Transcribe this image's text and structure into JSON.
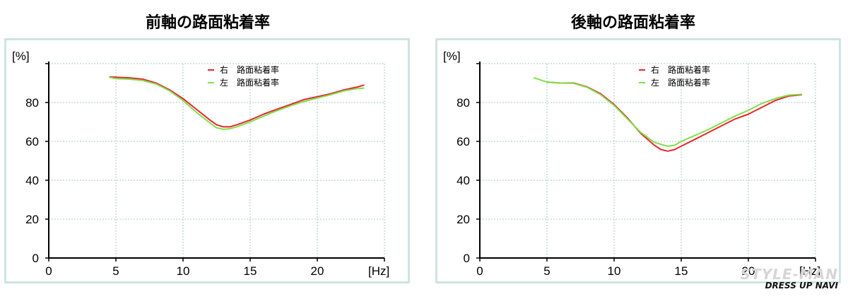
{
  "chart_data": [
    {
      "type": "line",
      "title": "前軸の路面粘着率",
      "ylabel": "[%]",
      "xlabel": "[Hz]",
      "xlim": [
        0,
        25
      ],
      "ylim": [
        0,
        100
      ],
      "x_ticks": [
        "0",
        "5",
        "10",
        "15",
        "20"
      ],
      "y_ticks": [
        "0",
        "20",
        "40",
        "60",
        "80"
      ],
      "grid": true,
      "legend_position": "top-center",
      "series": [
        {
          "name": "右　路面粘着率",
          "color": "#e8262d",
          "points": [
            [
              4.5,
              93.2
            ],
            [
              5,
              93
            ],
            [
              6,
              92.7
            ],
            [
              7,
              92
            ],
            [
              8,
              90
            ],
            [
              9,
              86.5
            ],
            [
              10,
              82
            ],
            [
              11,
              76.5
            ],
            [
              12,
              71
            ],
            [
              12.5,
              68.5
            ],
            [
              13,
              67.5
            ],
            [
              13.5,
              67.5
            ],
            [
              14,
              68.5
            ],
            [
              15,
              71
            ],
            [
              16,
              74
            ],
            [
              17,
              76.5
            ],
            [
              18,
              79
            ],
            [
              19,
              81.5
            ],
            [
              20,
              83
            ],
            [
              21,
              84.5
            ],
            [
              22,
              86.5
            ],
            [
              23,
              88
            ],
            [
              23.5,
              89
            ]
          ]
        },
        {
          "name": "左　路面粘着率",
          "color": "#7ee04a",
          "points": [
            [
              4.5,
              93
            ],
            [
              5,
              92.3
            ],
            [
              6,
              92
            ],
            [
              7,
              91.3
            ],
            [
              8,
              89.5
            ],
            [
              9,
              86
            ],
            [
              10,
              81
            ],
            [
              11,
              75
            ],
            [
              12,
              69.5
            ],
            [
              12.5,
              67
            ],
            [
              13,
              66.2
            ],
            [
              13.5,
              66.5
            ],
            [
              14,
              67.5
            ],
            [
              15,
              70
            ],
            [
              16,
              73
            ],
            [
              17,
              75.8
            ],
            [
              18,
              78.3
            ],
            [
              19,
              80.5
            ],
            [
              20,
              82.3
            ],
            [
              21,
              84
            ],
            [
              22,
              86
            ],
            [
              23,
              87.2
            ],
            [
              23.5,
              87.4
            ]
          ]
        }
      ]
    },
    {
      "type": "line",
      "title": "後軸の路面粘着率",
      "ylabel": "[%]",
      "xlabel": "[Hz]",
      "xlim": [
        0,
        25
      ],
      "ylim": [
        0,
        100
      ],
      "x_ticks": [
        "0",
        "5",
        "10",
        "15",
        "20"
      ],
      "y_ticks": [
        "0",
        "20",
        "40",
        "60",
        "80"
      ],
      "grid": true,
      "legend_position": "top-center",
      "series": [
        {
          "name": "右　路面粘着率",
          "color": "#e8262d",
          "points": [
            [
              5,
              90.5
            ],
            [
              6,
              90
            ],
            [
              7,
              90
            ],
            [
              8,
              88
            ],
            [
              9,
              84.5
            ],
            [
              10,
              79
            ],
            [
              11,
              72
            ],
            [
              12,
              64
            ],
            [
              13,
              58
            ],
            [
              13.5,
              55.8
            ],
            [
              14,
              55
            ],
            [
              14.5,
              55.8
            ],
            [
              15,
              57.5
            ],
            [
              16,
              61
            ],
            [
              17,
              64.5
            ],
            [
              18,
              68
            ],
            [
              19,
              71.5
            ],
            [
              20,
              74
            ],
            [
              21,
              77.5
            ],
            [
              22,
              81
            ],
            [
              23,
              83.3
            ],
            [
              24,
              84
            ]
          ]
        },
        {
          "name": "左　路面粘着率",
          "color": "#7ee04a",
          "points": [
            [
              4,
              92.8
            ],
            [
              5,
              90.5
            ],
            [
              6,
              90
            ],
            [
              7,
              89.8
            ],
            [
              8,
              87.8
            ],
            [
              9,
              84
            ],
            [
              10,
              78.5
            ],
            [
              11,
              71.5
            ],
            [
              12,
              64.5
            ],
            [
              13,
              59.5
            ],
            [
              14,
              57.5
            ],
            [
              14.5,
              58
            ],
            [
              15,
              60
            ],
            [
              16,
              63
            ],
            [
              17,
              66
            ],
            [
              18,
              69.5
            ],
            [
              19,
              73
            ],
            [
              20,
              76
            ],
            [
              21,
              79.5
            ],
            [
              22,
              82
            ],
            [
              23,
              83.8
            ],
            [
              24,
              84.2
            ]
          ]
        }
      ]
    }
  ],
  "watermark": {
    "line1": "STYLE-MAN",
    "line2": "DRESS UP NAVI"
  }
}
